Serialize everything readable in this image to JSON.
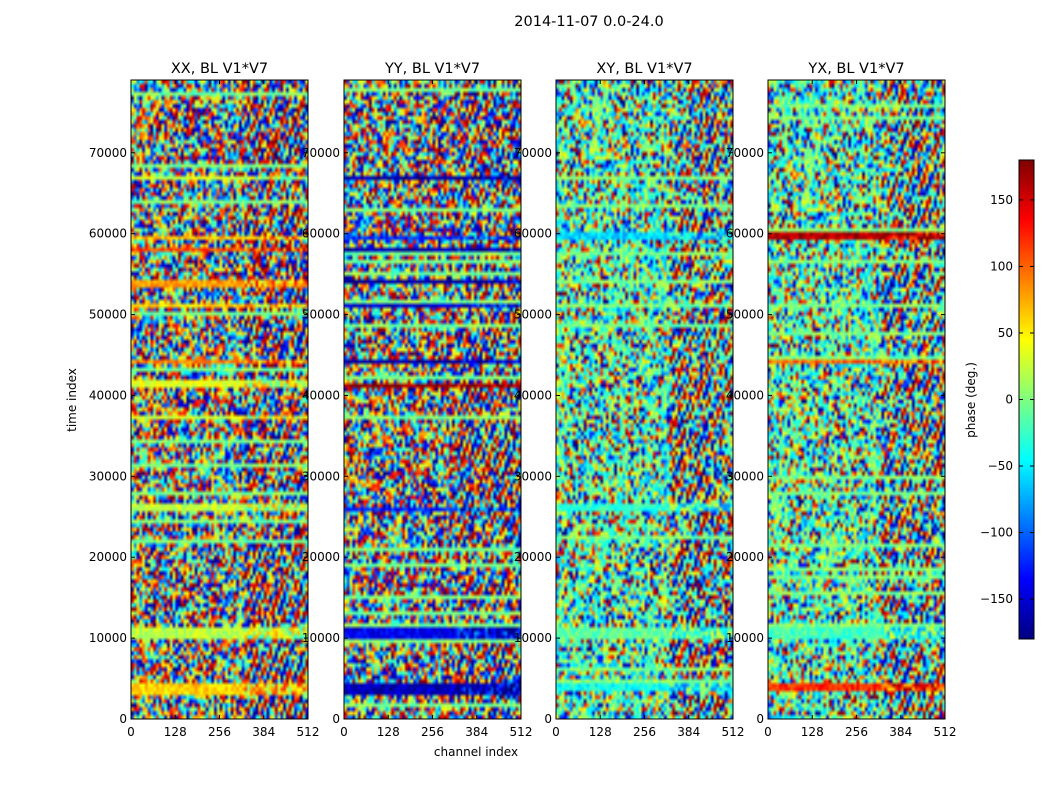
{
  "chart_data": {
    "type": "heatmap",
    "suptitle": "2014-11-07 0.0-24.0",
    "xlabel": "channel index",
    "ylabel": "time index",
    "x_ticks": [
      0,
      128,
      256,
      384,
      512
    ],
    "y_ticks": [
      0,
      10000,
      20000,
      30000,
      40000,
      50000,
      60000,
      70000
    ],
    "xlim": [
      0,
      512
    ],
    "ylim": [
      0,
      79000
    ],
    "colorbar": {
      "label": "phase (deg.)",
      "range": [
        -180,
        180
      ],
      "ticks": [
        150,
        100,
        50,
        0,
        -50,
        -100,
        -150
      ],
      "colormap": "jet",
      "colors": [
        "#00007f",
        "#0000ff",
        "#007fff",
        "#00ffff",
        "#7fff7f",
        "#ffff00",
        "#ff7f00",
        "#ff0000",
        "#7f0000"
      ]
    },
    "panels": [
      {
        "title": "XX, BL V1*V7",
        "noise": 1.0,
        "bands": [
          {
            "t0": 2800,
            "t1": 4300,
            "phase": 60
          },
          {
            "t0": 9800,
            "t1": 11500,
            "phase": 20
          },
          {
            "t0": 25800,
            "t1": 26600,
            "phase": 25
          },
          {
            "t0": 37200,
            "t1": 37700,
            "phase": 30
          },
          {
            "t0": 41200,
            "t1": 41800,
            "phase": 35
          },
          {
            "t0": 43700,
            "t1": 44500,
            "phase": 90
          },
          {
            "t0": 50800,
            "t1": 51300,
            "phase": 60
          },
          {
            "t0": 53500,
            "t1": 54200,
            "phase": 80
          },
          {
            "t0": 57600,
            "t1": 58200,
            "phase": 110
          },
          {
            "t0": 59200,
            "t1": 59700,
            "phase": 70
          },
          {
            "t0": 66500,
            "t1": 67200,
            "phase": 30
          }
        ]
      },
      {
        "title": "YY, BL V1*V7",
        "noise": 1.0,
        "bands": [
          {
            "t0": 3200,
            "t1": 4200,
            "phase": -160
          },
          {
            "t0": 9800,
            "t1": 11300,
            "phase": -140
          },
          {
            "t0": 25500,
            "t1": 26300,
            "phase": -120
          },
          {
            "t0": 41200,
            "t1": 41700,
            "phase": 170
          },
          {
            "t0": 43700,
            "t1": 44400,
            "phase": -165
          },
          {
            "t0": 50800,
            "t1": 51300,
            "phase": -150
          },
          {
            "t0": 53600,
            "t1": 54200,
            "phase": -170
          },
          {
            "t0": 57700,
            "t1": 58200,
            "phase": -160
          },
          {
            "t0": 59400,
            "t1": 59800,
            "phase": -120
          },
          {
            "t0": 66500,
            "t1": 67100,
            "phase": -165
          }
        ]
      },
      {
        "title": "XY, BL V1*V7",
        "noise": 0.55,
        "bands": [
          {
            "t0": 3300,
            "t1": 4600,
            "phase": -40
          },
          {
            "t0": 9900,
            "t1": 11300,
            "phase": -10
          },
          {
            "t0": 25500,
            "t1": 26500,
            "phase": -30
          },
          {
            "t0": 59400,
            "t1": 60000,
            "phase": -60
          }
        ]
      },
      {
        "title": "YX, BL V1*V7",
        "noise": 0.55,
        "bands": [
          {
            "t0": 3500,
            "t1": 4200,
            "phase": 120
          },
          {
            "t0": 9900,
            "t1": 11300,
            "phase": -20
          },
          {
            "t0": 44000,
            "t1": 44400,
            "phase": 100
          },
          {
            "t0": 59400,
            "t1": 60000,
            "phase": 160
          }
        ]
      }
    ]
  }
}
